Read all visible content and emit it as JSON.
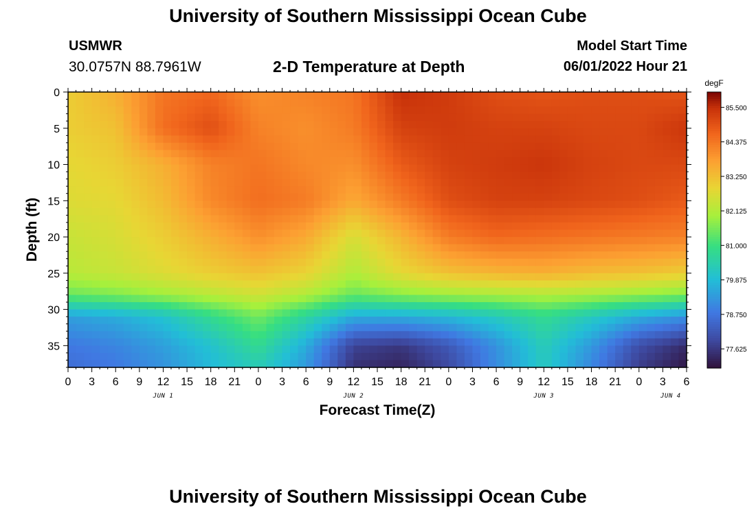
{
  "header": {
    "title": "University of Southern Mississippi Ocean Cube",
    "station": "USMWR",
    "coords": "30.0757N  88.7961W",
    "subtitle": "2-D Temperature at Depth",
    "start_label": "Model Start Time",
    "start_value": "06/01/2022 Hour 21"
  },
  "footer": {
    "title": "University of Southern Mississippi Ocean Cube"
  },
  "chart_data": {
    "type": "heatmap",
    "title": "2-D Temperature at Depth",
    "xlabel": "Forecast Time(Z)",
    "ylabel": "Depth (ft)",
    "x_tick_labels": [
      "0",
      "3",
      "6",
      "9",
      "12",
      "15",
      "18",
      "21",
      "0",
      "3",
      "6",
      "9",
      "12",
      "15",
      "18",
      "21",
      "0",
      "3",
      "6",
      "9",
      "12",
      "15",
      "18",
      "21",
      "0",
      "3",
      "6"
    ],
    "x_range_hours": [
      0,
      78
    ],
    "date_labels": [
      {
        "label": "JUN 1",
        "hour": 12
      },
      {
        "label": "JUN 2",
        "hour": 36
      },
      {
        "label": "JUN 3",
        "hour": 60
      },
      {
        "label": "JUN 4",
        "hour": 76
      }
    ],
    "y_ticks": [
      0,
      5,
      10,
      15,
      20,
      25,
      30,
      35
    ],
    "y_range_ft": [
      0,
      38
    ],
    "colorbar": {
      "unit": "degF",
      "range": [
        77.0,
        86.0
      ],
      "tick_values": [
        85.5,
        84.375,
        83.25,
        82.125,
        81.0,
        79.875,
        78.75,
        77.625
      ],
      "tick_labels": [
        "85.500",
        "84.375",
        "83.250",
        "82.125",
        "81.000",
        "79.875",
        "78.750",
        "77.625"
      ]
    },
    "grid_hours": [
      0,
      6,
      12,
      18,
      24,
      30,
      36,
      42,
      48,
      54,
      60,
      66,
      72,
      78
    ],
    "grid_depths": [
      0,
      5,
      10,
      15,
      20,
      25,
      28,
      31,
      35,
      38
    ],
    "values_degF": [
      [
        83.0,
        83.5,
        84.4,
        84.6,
        84.0,
        84.2,
        84.4,
        85.5,
        85.3,
        85.0,
        84.9,
        85.0,
        85.0,
        84.9
      ],
      [
        83.0,
        83.2,
        84.5,
        85.0,
        84.2,
        84.0,
        84.3,
        85.2,
        85.3,
        85.2,
        85.2,
        85.1,
        85.1,
        85.4
      ],
      [
        82.8,
        83.0,
        83.5,
        84.2,
        84.4,
        84.1,
        84.0,
        84.8,
        85.2,
        85.3,
        85.4,
        85.2,
        85.1,
        85.1
      ],
      [
        82.7,
        82.8,
        83.3,
        84.1,
        84.5,
        84.3,
        83.6,
        84.3,
        85.0,
        85.2,
        85.2,
        85.1,
        85.0,
        84.8
      ],
      [
        82.4,
        82.6,
        83.0,
        83.5,
        84.0,
        83.6,
        82.6,
        83.4,
        84.3,
        84.6,
        84.5,
        84.4,
        84.3,
        84.2
      ],
      [
        82.2,
        82.4,
        82.7,
        83.0,
        83.2,
        82.9,
        82.1,
        82.8,
        83.2,
        83.4,
        83.5,
        83.3,
        83.2,
        83.0
      ],
      [
        81.4,
        81.6,
        81.9,
        82.2,
        82.5,
        82.1,
        81.4,
        81.7,
        81.9,
        82.0,
        82.1,
        82.0,
        81.8,
        81.6
      ],
      [
        79.4,
        79.6,
        80.0,
        80.8,
        81.5,
        80.6,
        79.6,
        79.6,
        79.8,
        80.2,
        80.8,
        80.2,
        79.6,
        79.2
      ],
      [
        78.8,
        79.0,
        79.4,
        80.0,
        80.8,
        79.6,
        77.8,
        77.6,
        78.2,
        79.2,
        80.3,
        79.3,
        78.0,
        77.4
      ],
      [
        78.6,
        78.8,
        79.2,
        79.8,
        80.3,
        79.3,
        77.5,
        77.3,
        77.9,
        79.1,
        80.2,
        79.0,
        77.7,
        77.1
      ]
    ]
  }
}
